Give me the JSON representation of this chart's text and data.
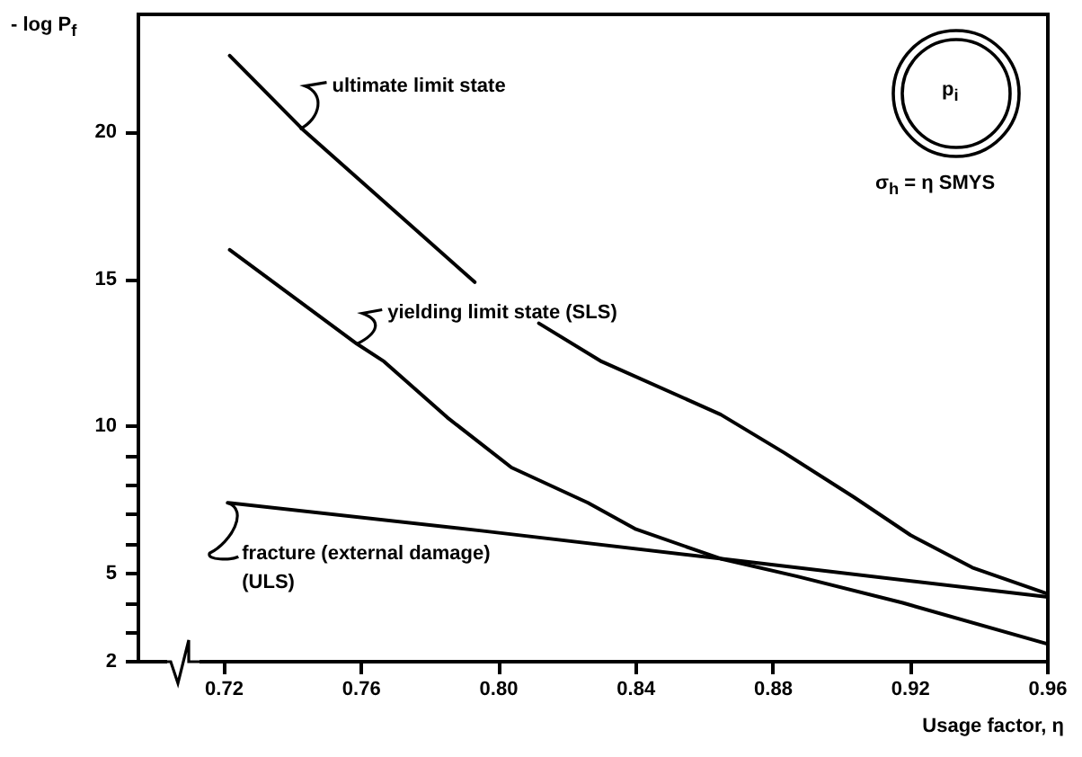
{
  "chart_data": {
    "type": "line",
    "ylabel": "- log P$_{f}$",
    "xlabel": "Usage factor, η",
    "xlim": [
      0.695,
      0.96
    ],
    "ylim": [
      2,
      24
    ],
    "xticks": [
      0.72,
      0.76,
      {
        "value": 0.8,
        "label": "0.80"
      },
      0.84,
      0.88,
      0.92,
      0.96
    ],
    "yticks": [
      2,
      {
        "value": 3,
        "label": null
      },
      {
        "value": 4,
        "label": null
      },
      5,
      {
        "value": 6,
        "label": null
      },
      {
        "value": 7,
        "label": null
      },
      {
        "value": 8,
        "label": null
      },
      {
        "value": 9,
        "label": null
      },
      10,
      15,
      20
    ],
    "series": [
      {
        "color": "#000000",
        "x": [
          0.7216,
          0.7428,
          0.793,
          0.8,
          0.8117,
          0.83,
          0.8647,
          0.8832,
          0.9034,
          0.92,
          0.938,
          0.96
        ],
        "values": [
          22.6,
          20.1,
          14.9,
          null,
          13.5,
          12.2,
          10.4,
          9.1,
          7.6,
          6.3,
          5.2,
          4.3
        ]
      },
      {
        "color": "#000000",
        "x": [
          0.7216,
          0.7587,
          0.7666,
          0.785,
          0.8037,
          0.826,
          0.84,
          0.8647,
          0.887,
          0.9177,
          0.96
        ],
        "values": [
          16.0,
          12.8,
          12.2,
          10.3,
          8.6,
          7.4,
          6.5,
          5.5,
          4.9,
          4.0,
          2.6
        ]
      },
      {
        "color": "#000000",
        "x": [
          0.721,
          0.795,
          0.865,
          0.96
        ],
        "values": [
          7.4,
          6.45,
          5.5,
          4.2
        ]
      }
    ],
    "annotations": [
      {
        "text": "ultimate limit state",
        "x": 0.742,
        "y": 20.1
      },
      {
        "text": "yielding limit state (SLS)",
        "x": 0.7587,
        "y": 12.8
      },
      {
        "text": "fracture (external damage)\n(ULS)",
        "x": 0.721,
        "y": 7.4
      },
      "p$_{i}$",
      "σ$_{h}$ = η SMYS"
    ]
  }
}
